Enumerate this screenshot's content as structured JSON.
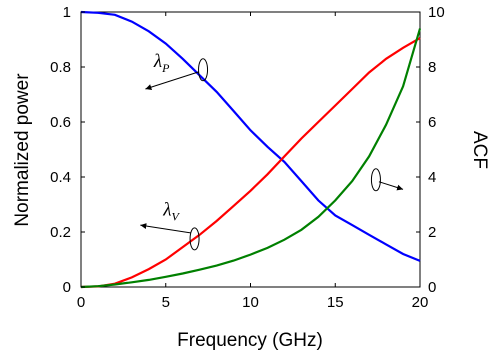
{
  "chart_data": {
    "type": "line",
    "xlabel": "Frequency (GHz)",
    "ylabel": "Normalized power",
    "y2label": "ACF",
    "xlim": [
      0,
      20
    ],
    "ylim": [
      0,
      1
    ],
    "y2lim": [
      0,
      10
    ],
    "x_ticks": [
      "0",
      "5",
      "10",
      "15",
      "20"
    ],
    "y_ticks": [
      "0",
      "0.2",
      "0.4",
      "0.6",
      "0.8",
      "1"
    ],
    "y2_ticks": [
      "0",
      "2",
      "4",
      "6",
      "8",
      "10"
    ],
    "grid": false,
    "legend": "none",
    "x": [
      0,
      1,
      2,
      3,
      4,
      5,
      6,
      7,
      8,
      9,
      10,
      11,
      12,
      13,
      14,
      15,
      16,
      17,
      18,
      19,
      20
    ],
    "series": [
      {
        "name": "λP",
        "axis": "left",
        "color": "#0000ff",
        "values": [
          1.0,
          0.997,
          0.99,
          0.965,
          0.93,
          0.885,
          0.83,
          0.77,
          0.71,
          0.64,
          0.57,
          0.51,
          0.455,
          0.385,
          0.315,
          0.26,
          0.225,
          0.19,
          0.155,
          0.12,
          0.095
        ]
      },
      {
        "name": "λV",
        "axis": "left",
        "color": "#ff0000",
        "values": [
          0.0,
          0.002,
          0.012,
          0.035,
          0.065,
          0.1,
          0.145,
          0.19,
          0.24,
          0.295,
          0.35,
          0.41,
          0.475,
          0.54,
          0.6,
          0.66,
          0.72,
          0.78,
          0.83,
          0.87,
          0.905
        ]
      },
      {
        "color": "#008000",
        "axis": "right",
        "values": [
          0.0,
          0.03,
          0.09,
          0.17,
          0.26,
          0.37,
          0.49,
          0.63,
          0.78,
          0.96,
          1.18,
          1.42,
          1.72,
          2.08,
          2.55,
          3.15,
          3.85,
          4.75,
          5.9,
          7.3,
          9.4
        ]
      }
    ],
    "annotations": [
      {
        "symbol": "λ",
        "subscript": "P",
        "x": 6.8,
        "y": 0.8
      },
      {
        "symbol": "λ",
        "subscript": "V",
        "x": 5.5,
        "y": 0.25
      }
    ]
  }
}
